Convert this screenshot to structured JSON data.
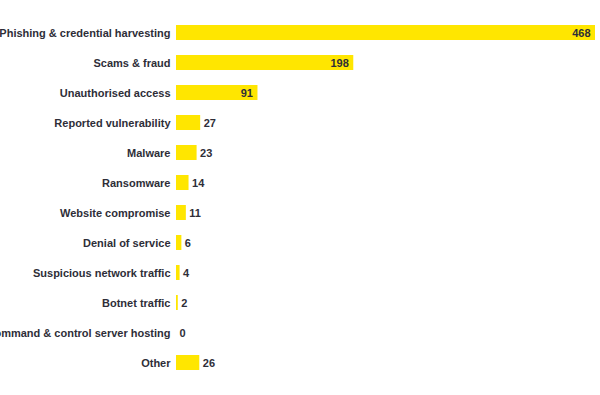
{
  "chart_data": {
    "type": "bar",
    "orientation": "horizontal",
    "categories": [
      "Phishing & credential harvesting",
      "Scams & fraud",
      "Unauthorised access",
      "Reported vulnerability",
      "Malware",
      "Ransomware",
      "Website compromise",
      "Denial of service",
      "Suspicious network traffic",
      "Botnet traffic",
      "Command & control server hosting",
      "Other"
    ],
    "values": [
      468,
      198,
      91,
      27,
      23,
      14,
      11,
      6,
      4,
      2,
      0,
      26
    ],
    "color": "#ffe600",
    "xlim": [
      0,
      468
    ],
    "grid": false,
    "data_labels": true,
    "tick_labels": "y"
  }
}
